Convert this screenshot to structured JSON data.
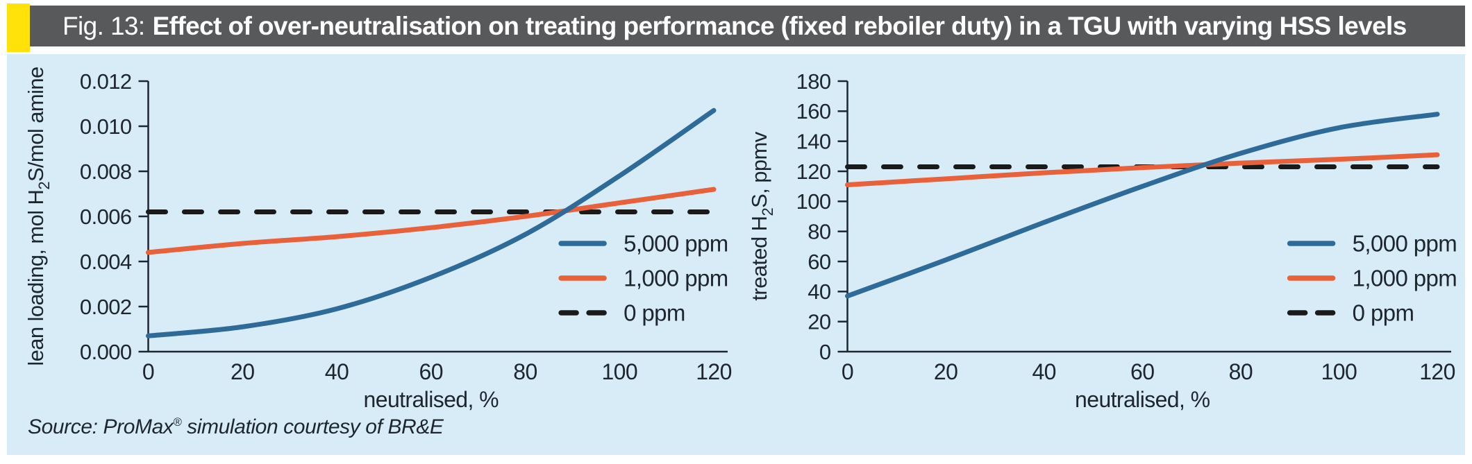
{
  "header": {
    "fig_label": "Fig. 13:",
    "title": "Effect of over-neutralisation on treating performance (fixed reboiler duty) in a TGU with varying HSS levels"
  },
  "source": {
    "prefix": "Source: ProMax",
    "sup": "®",
    "suffix": " simulation courtesy of BR&E"
  },
  "colors": {
    "panel_bg": "#d8ecf7",
    "header_bg": "#58595b",
    "header_text": "#ffffff",
    "accent_yellow": "#ffe20a",
    "series_blue": "#2f6b99",
    "series_orange": "#e8613a",
    "series_black": "#1a1a1a",
    "axis_ink": "#1d252e"
  },
  "chart_data": [
    {
      "type": "line",
      "title": "",
      "xlabel": "neutralised, %",
      "ylabel": {
        "pre": "lean loading, mol H",
        "sub": "2",
        "post": "S/mol amine"
      },
      "xlim": [
        0,
        120
      ],
      "ylim": [
        0,
        0.012
      ],
      "grid": false,
      "legend_position": {
        "x_frac": 0.73,
        "y_frac": 0.6
      },
      "xticks": [
        {
          "v": 0,
          "label": "0"
        },
        {
          "v": 20,
          "label": "20"
        },
        {
          "v": 40,
          "label": "40"
        },
        {
          "v": 60,
          "label": "60"
        },
        {
          "v": 80,
          "label": "80"
        },
        {
          "v": 100,
          "label": "100"
        },
        {
          "v": 120,
          "label": "120"
        }
      ],
      "yticks": [
        {
          "v": 0.0,
          "label": "0.000"
        },
        {
          "v": 0.002,
          "label": "0.002"
        },
        {
          "v": 0.004,
          "label": "0.004"
        },
        {
          "v": 0.006,
          "label": "0.006"
        },
        {
          "v": 0.008,
          "label": "0.008"
        },
        {
          "v": 0.01,
          "label": "0.010"
        },
        {
          "v": 0.012,
          "label": "0.012"
        }
      ],
      "x": [
        0,
        20,
        40,
        60,
        80,
        100,
        120
      ],
      "series": [
        {
          "name": "5,000 ppm",
          "color": "series_blue",
          "style": "solid",
          "values": [
            0.0007,
            0.0011,
            0.0019,
            0.0033,
            0.0052,
            0.0078,
            0.0107
          ]
        },
        {
          "name": "1,000 ppm",
          "color": "series_orange",
          "style": "solid",
          "values": [
            0.0044,
            0.0048,
            0.0051,
            0.0055,
            0.006,
            0.0066,
            0.0072
          ]
        },
        {
          "name": "0 ppm",
          "color": "series_black",
          "style": "dashed",
          "values": [
            0.0062,
            0.0062,
            0.0062,
            0.0062,
            0.0062,
            0.0062,
            0.0062
          ]
        }
      ]
    },
    {
      "type": "line",
      "title": "",
      "xlabel": "neutralised, %",
      "ylabel": {
        "pre": "treated H",
        "sub": "2",
        "post": "S, ppmv"
      },
      "xlim": [
        0,
        120
      ],
      "ylim": [
        0,
        180
      ],
      "grid": false,
      "legend_position": {
        "x_frac": 0.75,
        "y_frac": 0.6
      },
      "xticks": [
        {
          "v": 0,
          "label": "0"
        },
        {
          "v": 20,
          "label": "20"
        },
        {
          "v": 40,
          "label": "40"
        },
        {
          "v": 60,
          "label": "60"
        },
        {
          "v": 80,
          "label": "80"
        },
        {
          "v": 100,
          "label": "100"
        },
        {
          "v": 120,
          "label": "120"
        }
      ],
      "yticks": [
        {
          "v": 0,
          "label": "0"
        },
        {
          "v": 20,
          "label": "20"
        },
        {
          "v": 40,
          "label": "40"
        },
        {
          "v": 60,
          "label": "60"
        },
        {
          "v": 80,
          "label": "80"
        },
        {
          "v": 100,
          "label": "100"
        },
        {
          "v": 120,
          "label": "120"
        },
        {
          "v": 140,
          "label": "140"
        },
        {
          "v": 160,
          "label": "160"
        },
        {
          "v": 180,
          "label": "180"
        }
      ],
      "x": [
        0,
        20,
        40,
        60,
        80,
        100,
        120
      ],
      "series": [
        {
          "name": "5,000 ppm",
          "color": "series_blue",
          "style": "solid",
          "values": [
            37,
            61,
            86,
            110,
            132,
            149,
            158
          ]
        },
        {
          "name": "1,000 ppm",
          "color": "series_orange",
          "style": "solid",
          "values": [
            111,
            115,
            119,
            122.5,
            125.5,
            128,
            131
          ]
        },
        {
          "name": "0 ppm",
          "color": "series_black",
          "style": "dashed",
          "values": [
            123,
            123,
            123,
            123,
            123,
            123,
            123
          ]
        }
      ]
    }
  ]
}
